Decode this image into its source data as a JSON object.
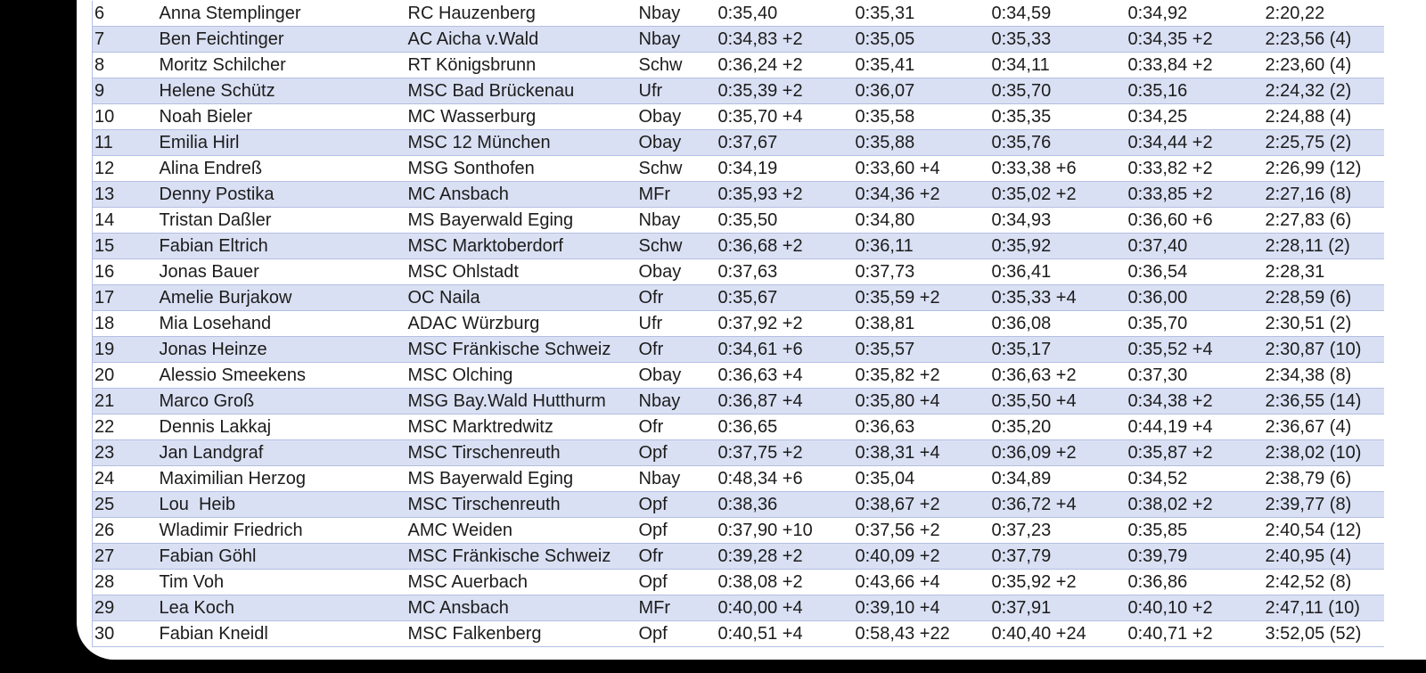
{
  "table": {
    "rows": [
      [
        "6",
        "Anna Stemplinger",
        "RC Hauzenberg",
        "Nbay",
        "0:35,40",
        "0:35,31",
        "0:34,59",
        "0:34,92",
        "2:20,22"
      ],
      [
        "7",
        "Ben Feichtinger",
        "AC Aicha v.Wald",
        "Nbay",
        "0:34,83 +2",
        "0:35,05",
        "0:35,33",
        "0:34,35 +2",
        "2:23,56 (4)"
      ],
      [
        "8",
        "Moritz Schilcher",
        "RT Königsbrunn",
        "Schw",
        "0:36,24 +2",
        "0:35,41",
        "0:34,11",
        "0:33,84 +2",
        "2:23,60 (4)"
      ],
      [
        "9",
        "Helene Schütz",
        "MSC Bad Brückenau",
        "Ufr",
        "0:35,39 +2",
        "0:36,07",
        "0:35,70",
        "0:35,16",
        "2:24,32 (2)"
      ],
      [
        "10",
        "Noah Bieler",
        "MC Wasserburg",
        "Obay",
        "0:35,70 +4",
        "0:35,58",
        "0:35,35",
        "0:34,25",
        "2:24,88 (4)"
      ],
      [
        "11",
        "Emilia Hirl",
        "MSC 12 München",
        "Obay",
        "0:37,67",
        "0:35,88",
        "0:35,76",
        "0:34,44 +2",
        "2:25,75 (2)"
      ],
      [
        "12",
        "Alina Endreß",
        "MSG Sonthofen",
        "Schw",
        "0:34,19",
        "0:33,60 +4",
        "0:33,38 +6",
        "0:33,82 +2",
        "2:26,99 (12)"
      ],
      [
        "13",
        "Denny Postika",
        "MC Ansbach",
        "MFr",
        "0:35,93 +2",
        "0:34,36 +2",
        "0:35,02 +2",
        "0:33,85 +2",
        "2:27,16 (8)"
      ],
      [
        "14",
        "Tristan Daßler",
        "MS Bayerwald Eging",
        "Nbay",
        "0:35,50",
        "0:34,80",
        "0:34,93",
        "0:36,60 +6",
        "2:27,83 (6)"
      ],
      [
        "15",
        "Fabian Eltrich",
        "MSC Marktoberdorf",
        "Schw",
        "0:36,68 +2",
        "0:36,11",
        "0:35,92",
        "0:37,40",
        "2:28,11 (2)"
      ],
      [
        "16",
        "Jonas Bauer",
        "MSC Ohlstadt",
        "Obay",
        "0:37,63",
        "0:37,73",
        "0:36,41",
        "0:36,54",
        "2:28,31"
      ],
      [
        "17",
        "Amelie Burjakow",
        "OC Naila",
        "Ofr",
        "0:35,67",
        "0:35,59 +2",
        "0:35,33 +4",
        "0:36,00",
        "2:28,59 (6)"
      ],
      [
        "18",
        "Mia Losehand",
        "ADAC Würzburg",
        "Ufr",
        "0:37,92 +2",
        "0:38,81",
        "0:36,08",
        "0:35,70",
        "2:30,51 (2)"
      ],
      [
        "19",
        "Jonas Heinze",
        "MSC Fränkische Schweiz",
        "Ofr",
        "0:34,61 +6",
        "0:35,57",
        "0:35,17",
        "0:35,52 +4",
        "2:30,87 (10)"
      ],
      [
        "20",
        "Alessio Smeekens",
        "MSC Olching",
        "Obay",
        "0:36,63 +4",
        "0:35,82 +2",
        "0:36,63 +2",
        "0:37,30",
        "2:34,38 (8)"
      ],
      [
        "21",
        "Marco Groß",
        "MSG Bay.Wald Hutthurm",
        "Nbay",
        "0:36,87 +4",
        "0:35,80 +4",
        "0:35,50 +4",
        "0:34,38 +2",
        "2:36,55 (14)"
      ],
      [
        "22",
        "Dennis Lakkaj",
        "MSC Marktredwitz",
        "Ofr",
        "0:36,65",
        "0:36,63",
        "0:35,20",
        "0:44,19 +4",
        "2:36,67 (4)"
      ],
      [
        "23",
        "Jan Landgraf",
        "MSC Tirschenreuth",
        "Opf",
        "0:37,75 +2",
        "0:38,31 +4",
        "0:36,09 +2",
        "0:35,87 +2",
        "2:38,02 (10)"
      ],
      [
        "24",
        "Maximilian Herzog",
        "MS Bayerwald Eging",
        "Nbay",
        "0:48,34 +6",
        "0:35,04",
        "0:34,89",
        "0:34,52",
        "2:38,79 (6)"
      ],
      [
        "25",
        "Lou  Heib",
        "MSC Tirschenreuth",
        "Opf",
        "0:38,36",
        "0:38,67 +2",
        "0:36,72 +4",
        "0:38,02 +2",
        "2:39,77 (8)"
      ],
      [
        "26",
        "Wladimir Friedrich",
        "AMC Weiden",
        "Opf",
        "0:37,90 +10",
        "0:37,56 +2",
        "0:37,23",
        "0:35,85",
        "2:40,54 (12)"
      ],
      [
        "27",
        "Fabian Göhl",
        "MSC Fränkische Schweiz",
        "Ofr",
        "0:39,28 +2",
        "0:40,09 +2",
        "0:37,79",
        "0:39,79",
        "2:40,95 (4)"
      ],
      [
        "28",
        "Tim Voh",
        "MSC Auerbach",
        "Opf",
        "0:38,08 +2",
        "0:43,66 +4",
        "0:35,92 +2",
        "0:36,86",
        "2:42,52 (8)"
      ],
      [
        "29",
        "Lea Koch",
        "MC Ansbach",
        "MFr",
        "0:40,00 +4",
        "0:39,10 +4",
        "0:37,91",
        "0:40,10 +2",
        "2:47,11 (10)"
      ],
      [
        "30",
        "Fabian Kneidl",
        "MSC Falkenberg",
        "Opf",
        "0:40,51 +4",
        "0:58,43 +22",
        "0:40,40 +24",
        "0:40,71 +2",
        "3:52,05 (52)"
      ]
    ]
  }
}
